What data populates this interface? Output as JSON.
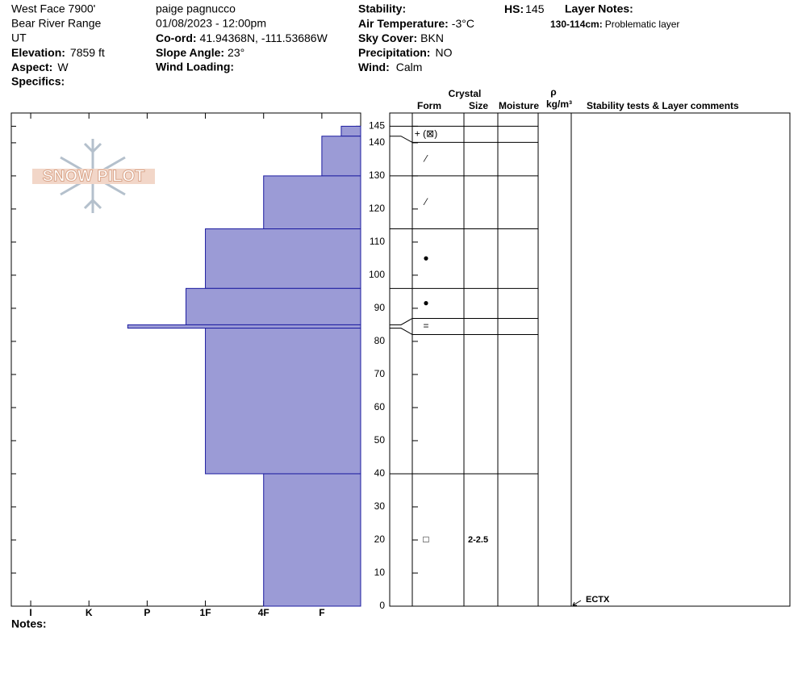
{
  "header": {
    "site": "West Face 7900'",
    "range": "Bear River Range",
    "state": "UT",
    "elevation": {
      "label": "Elevation:",
      "value": "7859 ft"
    },
    "aspect": {
      "label": "Aspect:",
      "value": "W"
    },
    "specifics": {
      "label": "Specifics:"
    },
    "observer": "paige pagnucco",
    "datetime": "01/08/2023 - 12:00pm",
    "coord": {
      "label": "Co-ord:",
      "value": "41.94368N, -111.53686W"
    },
    "slope": {
      "label": "Slope Angle:",
      "value": "23°"
    },
    "wind_loading": {
      "label": "Wind Loading:"
    },
    "stability": {
      "label": "Stability:"
    },
    "air_temp": {
      "label": "Air Temperature:",
      "value": "-3°C"
    },
    "sky": {
      "label": "Sky Cover:",
      "value": "BKN"
    },
    "precip": {
      "label": "Precipitation:",
      "value": "NO"
    },
    "wind": {
      "label": "Wind:",
      "value": "Calm"
    },
    "hs": {
      "label": "HS:",
      "value": "145"
    },
    "layer_notes": {
      "title": "Layer Notes:",
      "range": "130-114cm:",
      "text": "Problematic layer"
    }
  },
  "logo_text": "SNOW PILOT",
  "notes_label": "Notes:",
  "columns": {
    "crystal": "Crystal",
    "form": "Form",
    "size": "Size",
    "moisture": "Moisture",
    "rho": "ρ",
    "density": "kg/m³",
    "comments": "Stability tests & Layer comments"
  },
  "chart_data": {
    "type": "bar",
    "orientation": "horizontal",
    "layer_top": [
      145,
      142,
      130,
      114,
      96,
      85,
      84,
      40
    ],
    "layer_bottom": [
      142,
      130,
      114,
      96,
      85,
      84,
      40,
      0
    ],
    "values": [
      2,
      3,
      6,
      9,
      10,
      13,
      9,
      6
    ],
    "forms": [
      "+ (⊠)",
      "⁄",
      "⁄",
      "●",
      "●",
      "=",
      null,
      "□"
    ],
    "sizes": [
      null,
      null,
      null,
      null,
      null,
      null,
      null,
      "2-2.5"
    ],
    "color": "#9b9bd6",
    "edge_color": "#1c1ca0",
    "ylim": [
      0,
      149
    ],
    "yticks": [
      0,
      10,
      20,
      30,
      40,
      50,
      60,
      70,
      80,
      90,
      100,
      110,
      120,
      130,
      140,
      145
    ],
    "xlim": [
      19,
      1
    ],
    "xticks": [
      {
        "value": 18,
        "label": "I"
      },
      {
        "value": 15,
        "label": "K"
      },
      {
        "value": 12,
        "label": "P"
      },
      {
        "value": 9,
        "label": "1F"
      },
      {
        "value": 6,
        "label": "4F"
      },
      {
        "value": 3,
        "label": "F"
      }
    ],
    "stability_tests": [
      {
        "depth": 0,
        "label": "ECTX"
      }
    ]
  }
}
